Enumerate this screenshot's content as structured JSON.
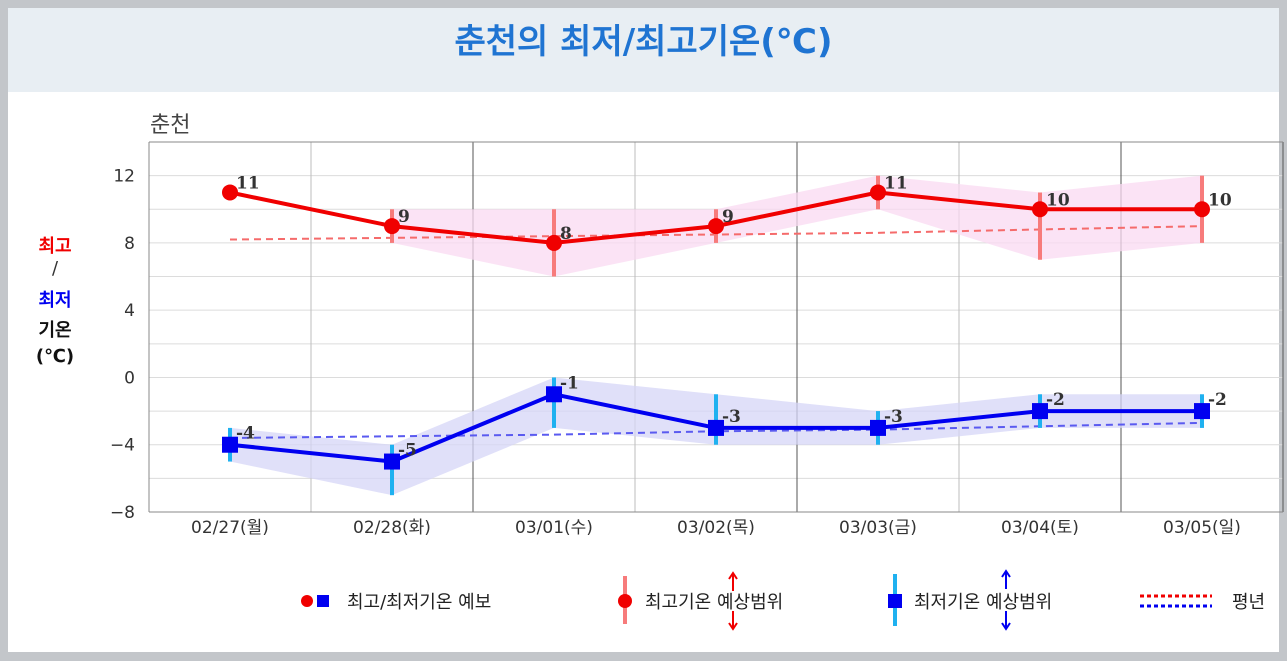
{
  "page": {
    "title": "춘천의 최저/최고기온(℃)"
  },
  "y_label": {
    "max": "최고",
    "slash": "/",
    "min": "최저",
    "temp": "기온",
    "unit": "(℃)"
  },
  "colors": {
    "max": "#f00000",
    "min": "#0000f0",
    "max_range": "#f77b7b",
    "min_range": "#1fb1f0",
    "max_band": "#f9d9f2",
    "min_band": "#d6d6f7",
    "max_normal": "#f56b6b",
    "min_normal": "#5a5af0"
  },
  "legend": {
    "forecast": "최고/최저기온 예보",
    "max_range": "최고기온 예상범위",
    "min_range": "최저기온 예상범위",
    "normal": "평년"
  },
  "chart_data": {
    "type": "line",
    "subtitle": "춘천",
    "categories": [
      "02/27(월)",
      "02/28(화)",
      "03/01(수)",
      "03/02(목)",
      "03/03(금)",
      "03/04(토)",
      "03/05(일)"
    ],
    "ylim": [
      -8,
      14
    ],
    "yticks": [
      12,
      8,
      4,
      0,
      -4,
      -8
    ],
    "grid": true,
    "legend_position": "bottom",
    "series": [
      {
        "name": "최고기온 예보",
        "values": [
          11,
          9,
          8,
          9,
          11,
          10,
          10
        ],
        "labels": [
          "11",
          "9",
          "8",
          "9",
          "11",
          "10",
          "10"
        ],
        "range_low": [
          null,
          8,
          6,
          8,
          10,
          7,
          8
        ],
        "range_high": [
          null,
          10,
          10,
          10,
          12,
          11,
          12
        ]
      },
      {
        "name": "최저기온 예보",
        "values": [
          -4,
          -5,
          -1,
          -3,
          -3,
          -2,
          -2
        ],
        "labels": [
          "-4",
          "-5",
          "-1",
          "-3",
          "-3",
          "-2",
          "-2"
        ],
        "range_low": [
          -5,
          -7,
          -3,
          -4,
          -4,
          -3,
          -3
        ],
        "range_high": [
          -3,
          -4,
          0,
          -1,
          -2,
          -1,
          -1
        ]
      },
      {
        "name": "최고기온 평년",
        "values": [
          8.2,
          8.3,
          8.4,
          8.5,
          8.6,
          8.8,
          9.0
        ]
      },
      {
        "name": "최저기온 평년",
        "values": [
          -3.6,
          -3.5,
          -3.4,
          -3.2,
          -3.1,
          -2.9,
          -2.7
        ]
      }
    ]
  }
}
